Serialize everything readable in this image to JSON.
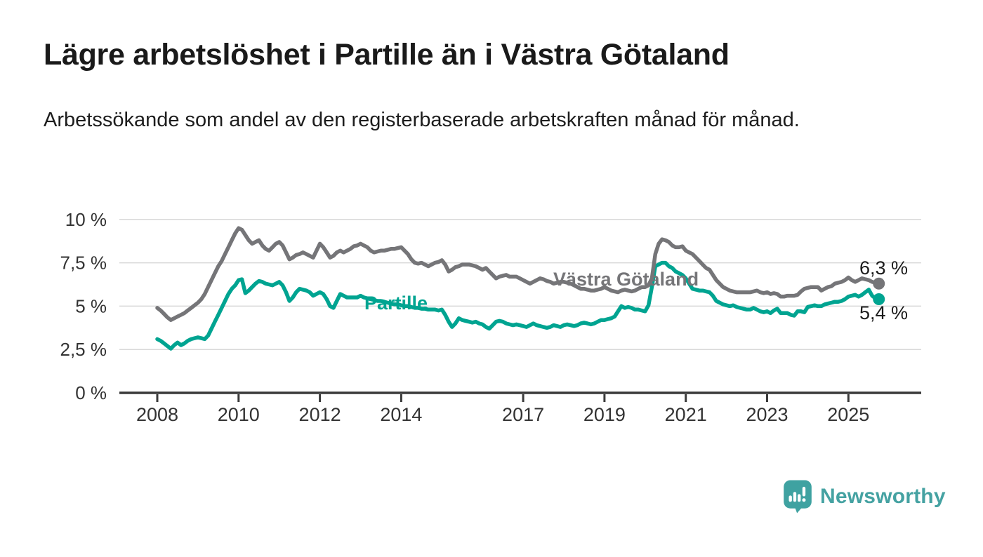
{
  "header": {
    "title": "Lägre arbetslöshet i Partille än i Västra Götaland",
    "subtitle": "Arbetssökande som andel av den registerbaserade arbetskraften månad för månad."
  },
  "footer": {
    "brand": "Newsworthy"
  },
  "colors": {
    "series_gray": "#757578",
    "series_teal": "#00a491",
    "axis": "#3a3a3a",
    "tick_text": "#333333",
    "gridline": "#d9d9d9",
    "annotation_text": "#1a1a1a",
    "logo_teal": "#3fa2a1"
  },
  "chart_data": {
    "type": "line",
    "title": "Lägre arbetslöshet i Partille än i Västra Götaland",
    "subtitle": "Arbetssökande som andel av den registerbaserade arbetskraften månad för månad.",
    "unit": "%",
    "x_frequency": "monthly",
    "x_start": "2008-01",
    "x_end": "2025-10",
    "ylim": [
      0,
      10
    ],
    "grid": "horizontal",
    "legend_position": "inline-labels",
    "yticks": [
      {
        "value": 0,
        "label": "0 %"
      },
      {
        "value": 2.5,
        "label": "2,5 %"
      },
      {
        "value": 5,
        "label": "5 %"
      },
      {
        "value": 7.5,
        "label": "7,5 %"
      },
      {
        "value": 10,
        "label": "10 %"
      }
    ],
    "xticks": [
      {
        "year": 2008,
        "label": "2008"
      },
      {
        "year": 2010,
        "label": "2010"
      },
      {
        "year": 2012,
        "label": "2012"
      },
      {
        "year": 2014,
        "label": "2014"
      },
      {
        "year": 2017,
        "label": "2017"
      },
      {
        "year": 2019,
        "label": "2019"
      },
      {
        "year": 2021,
        "label": "2021"
      },
      {
        "year": 2023,
        "label": "2023"
      },
      {
        "year": 2025,
        "label": "2025"
      }
    ],
    "series": [
      {
        "name": "Västra Götaland",
        "color": "#757578",
        "end_value": 6.3,
        "end_label": "6,3 %",
        "values": [
          4.9,
          4.75,
          4.55,
          4.35,
          4.2,
          4.3,
          4.4,
          4.5,
          4.6,
          4.75,
          4.9,
          5.05,
          5.2,
          5.4,
          5.7,
          6.1,
          6.5,
          6.9,
          7.3,
          7.6,
          8.0,
          8.4,
          8.8,
          9.2,
          9.5,
          9.4,
          9.1,
          8.8,
          8.6,
          8.7,
          8.8,
          8.5,
          8.3,
          8.2,
          8.4,
          8.6,
          8.7,
          8.5,
          8.1,
          7.7,
          7.8,
          7.95,
          8.0,
          8.1,
          8.0,
          7.9,
          7.8,
          8.2,
          8.6,
          8.4,
          8.1,
          7.8,
          7.9,
          8.1,
          8.2,
          8.1,
          8.2,
          8.3,
          8.45,
          8.5,
          8.6,
          8.5,
          8.4,
          8.2,
          8.1,
          8.15,
          8.2,
          8.2,
          8.25,
          8.3,
          8.3,
          8.35,
          8.4,
          8.2,
          8.0,
          7.7,
          7.5,
          7.45,
          7.5,
          7.4,
          7.3,
          7.4,
          7.5,
          7.55,
          7.65,
          7.4,
          7.0,
          7.1,
          7.25,
          7.3,
          7.4,
          7.4,
          7.4,
          7.35,
          7.3,
          7.2,
          7.1,
          7.2,
          7.0,
          6.8,
          6.6,
          6.7,
          6.75,
          6.8,
          6.7,
          6.7,
          6.7,
          6.6,
          6.5,
          6.4,
          6.3,
          6.4,
          6.5,
          6.6,
          6.55,
          6.45,
          6.4,
          6.3,
          6.35,
          6.4,
          6.4,
          6.35,
          6.3,
          6.2,
          6.1,
          6.0,
          6.0,
          5.95,
          5.9,
          5.9,
          5.95,
          6.0,
          6.1,
          6.0,
          5.9,
          5.85,
          5.8,
          5.9,
          5.95,
          5.9,
          5.85,
          5.9,
          6.0,
          6.1,
          6.1,
          6.2,
          6.6,
          8.0,
          8.6,
          8.85,
          8.8,
          8.7,
          8.5,
          8.4,
          8.4,
          8.45,
          8.2,
          8.1,
          8.0,
          7.8,
          7.6,
          7.4,
          7.2,
          7.1,
          6.8,
          6.5,
          6.3,
          6.1,
          6.0,
          5.9,
          5.85,
          5.8,
          5.8,
          5.8,
          5.8,
          5.8,
          5.85,
          5.9,
          5.8,
          5.75,
          5.8,
          5.7,
          5.75,
          5.7,
          5.55,
          5.55,
          5.6,
          5.6,
          5.6,
          5.65,
          5.85,
          6.0,
          6.05,
          6.1,
          6.1,
          6.1,
          5.9,
          6.0,
          6.1,
          6.15,
          6.3,
          6.35,
          6.4,
          6.5,
          6.65,
          6.5,
          6.4,
          6.5,
          6.6,
          6.55,
          6.5,
          6.4,
          6.35,
          6.3
        ]
      },
      {
        "name": "Partille",
        "color": "#00a491",
        "end_value": 5.4,
        "end_label": "5,4 %",
        "values": [
          3.1,
          3.0,
          2.85,
          2.7,
          2.55,
          2.75,
          2.9,
          2.75,
          2.85,
          3.0,
          3.1,
          3.15,
          3.2,
          3.15,
          3.1,
          3.3,
          3.7,
          4.1,
          4.5,
          4.9,
          5.3,
          5.7,
          6.0,
          6.2,
          6.5,
          6.55,
          5.75,
          5.9,
          6.1,
          6.3,
          6.45,
          6.4,
          6.3,
          6.25,
          6.2,
          6.3,
          6.4,
          6.2,
          5.8,
          5.3,
          5.5,
          5.8,
          6.0,
          5.95,
          5.9,
          5.8,
          5.6,
          5.7,
          5.8,
          5.7,
          5.4,
          5.0,
          4.9,
          5.3,
          5.7,
          5.6,
          5.5,
          5.5,
          5.5,
          5.5,
          5.6,
          5.5,
          5.45,
          5.4,
          5.35,
          5.3,
          5.3,
          5.25,
          5.2,
          5.15,
          5.1,
          5.1,
          5.05,
          5.0,
          5.0,
          4.95,
          4.9,
          4.9,
          4.85,
          4.85,
          4.8,
          4.8,
          4.8,
          4.75,
          4.8,
          4.5,
          4.1,
          3.8,
          4.0,
          4.3,
          4.2,
          4.15,
          4.1,
          4.05,
          4.1,
          4.0,
          3.95,
          3.8,
          3.7,
          3.9,
          4.1,
          4.15,
          4.1,
          4.0,
          3.95,
          3.9,
          3.95,
          3.9,
          3.85,
          3.8,
          3.9,
          4.0,
          3.9,
          3.85,
          3.8,
          3.75,
          3.8,
          3.9,
          3.85,
          3.8,
          3.9,
          3.95,
          3.9,
          3.85,
          3.9,
          4.0,
          4.05,
          4.0,
          3.95,
          4.0,
          4.1,
          4.2,
          4.2,
          4.25,
          4.3,
          4.4,
          4.7,
          5.0,
          4.9,
          4.95,
          4.9,
          4.8,
          4.8,
          4.75,
          4.7,
          5.05,
          6.1,
          7.3,
          7.4,
          7.5,
          7.5,
          7.3,
          7.2,
          7.0,
          6.9,
          6.8,
          6.6,
          6.3,
          6.0,
          5.95,
          5.9,
          5.9,
          5.85,
          5.8,
          5.6,
          5.3,
          5.2,
          5.1,
          5.05,
          5.0,
          5.05,
          4.95,
          4.9,
          4.85,
          4.8,
          4.8,
          4.9,
          4.8,
          4.7,
          4.65,
          4.7,
          4.6,
          4.75,
          4.85,
          4.6,
          4.6,
          4.6,
          4.5,
          4.45,
          4.7,
          4.7,
          4.65,
          4.95,
          5.0,
          5.05,
          5.0,
          5.0,
          5.1,
          5.15,
          5.2,
          5.25,
          5.25,
          5.3,
          5.4,
          5.55,
          5.6,
          5.65,
          5.55,
          5.65,
          5.8,
          5.95,
          5.6,
          5.45,
          5.4
        ]
      }
    ]
  }
}
